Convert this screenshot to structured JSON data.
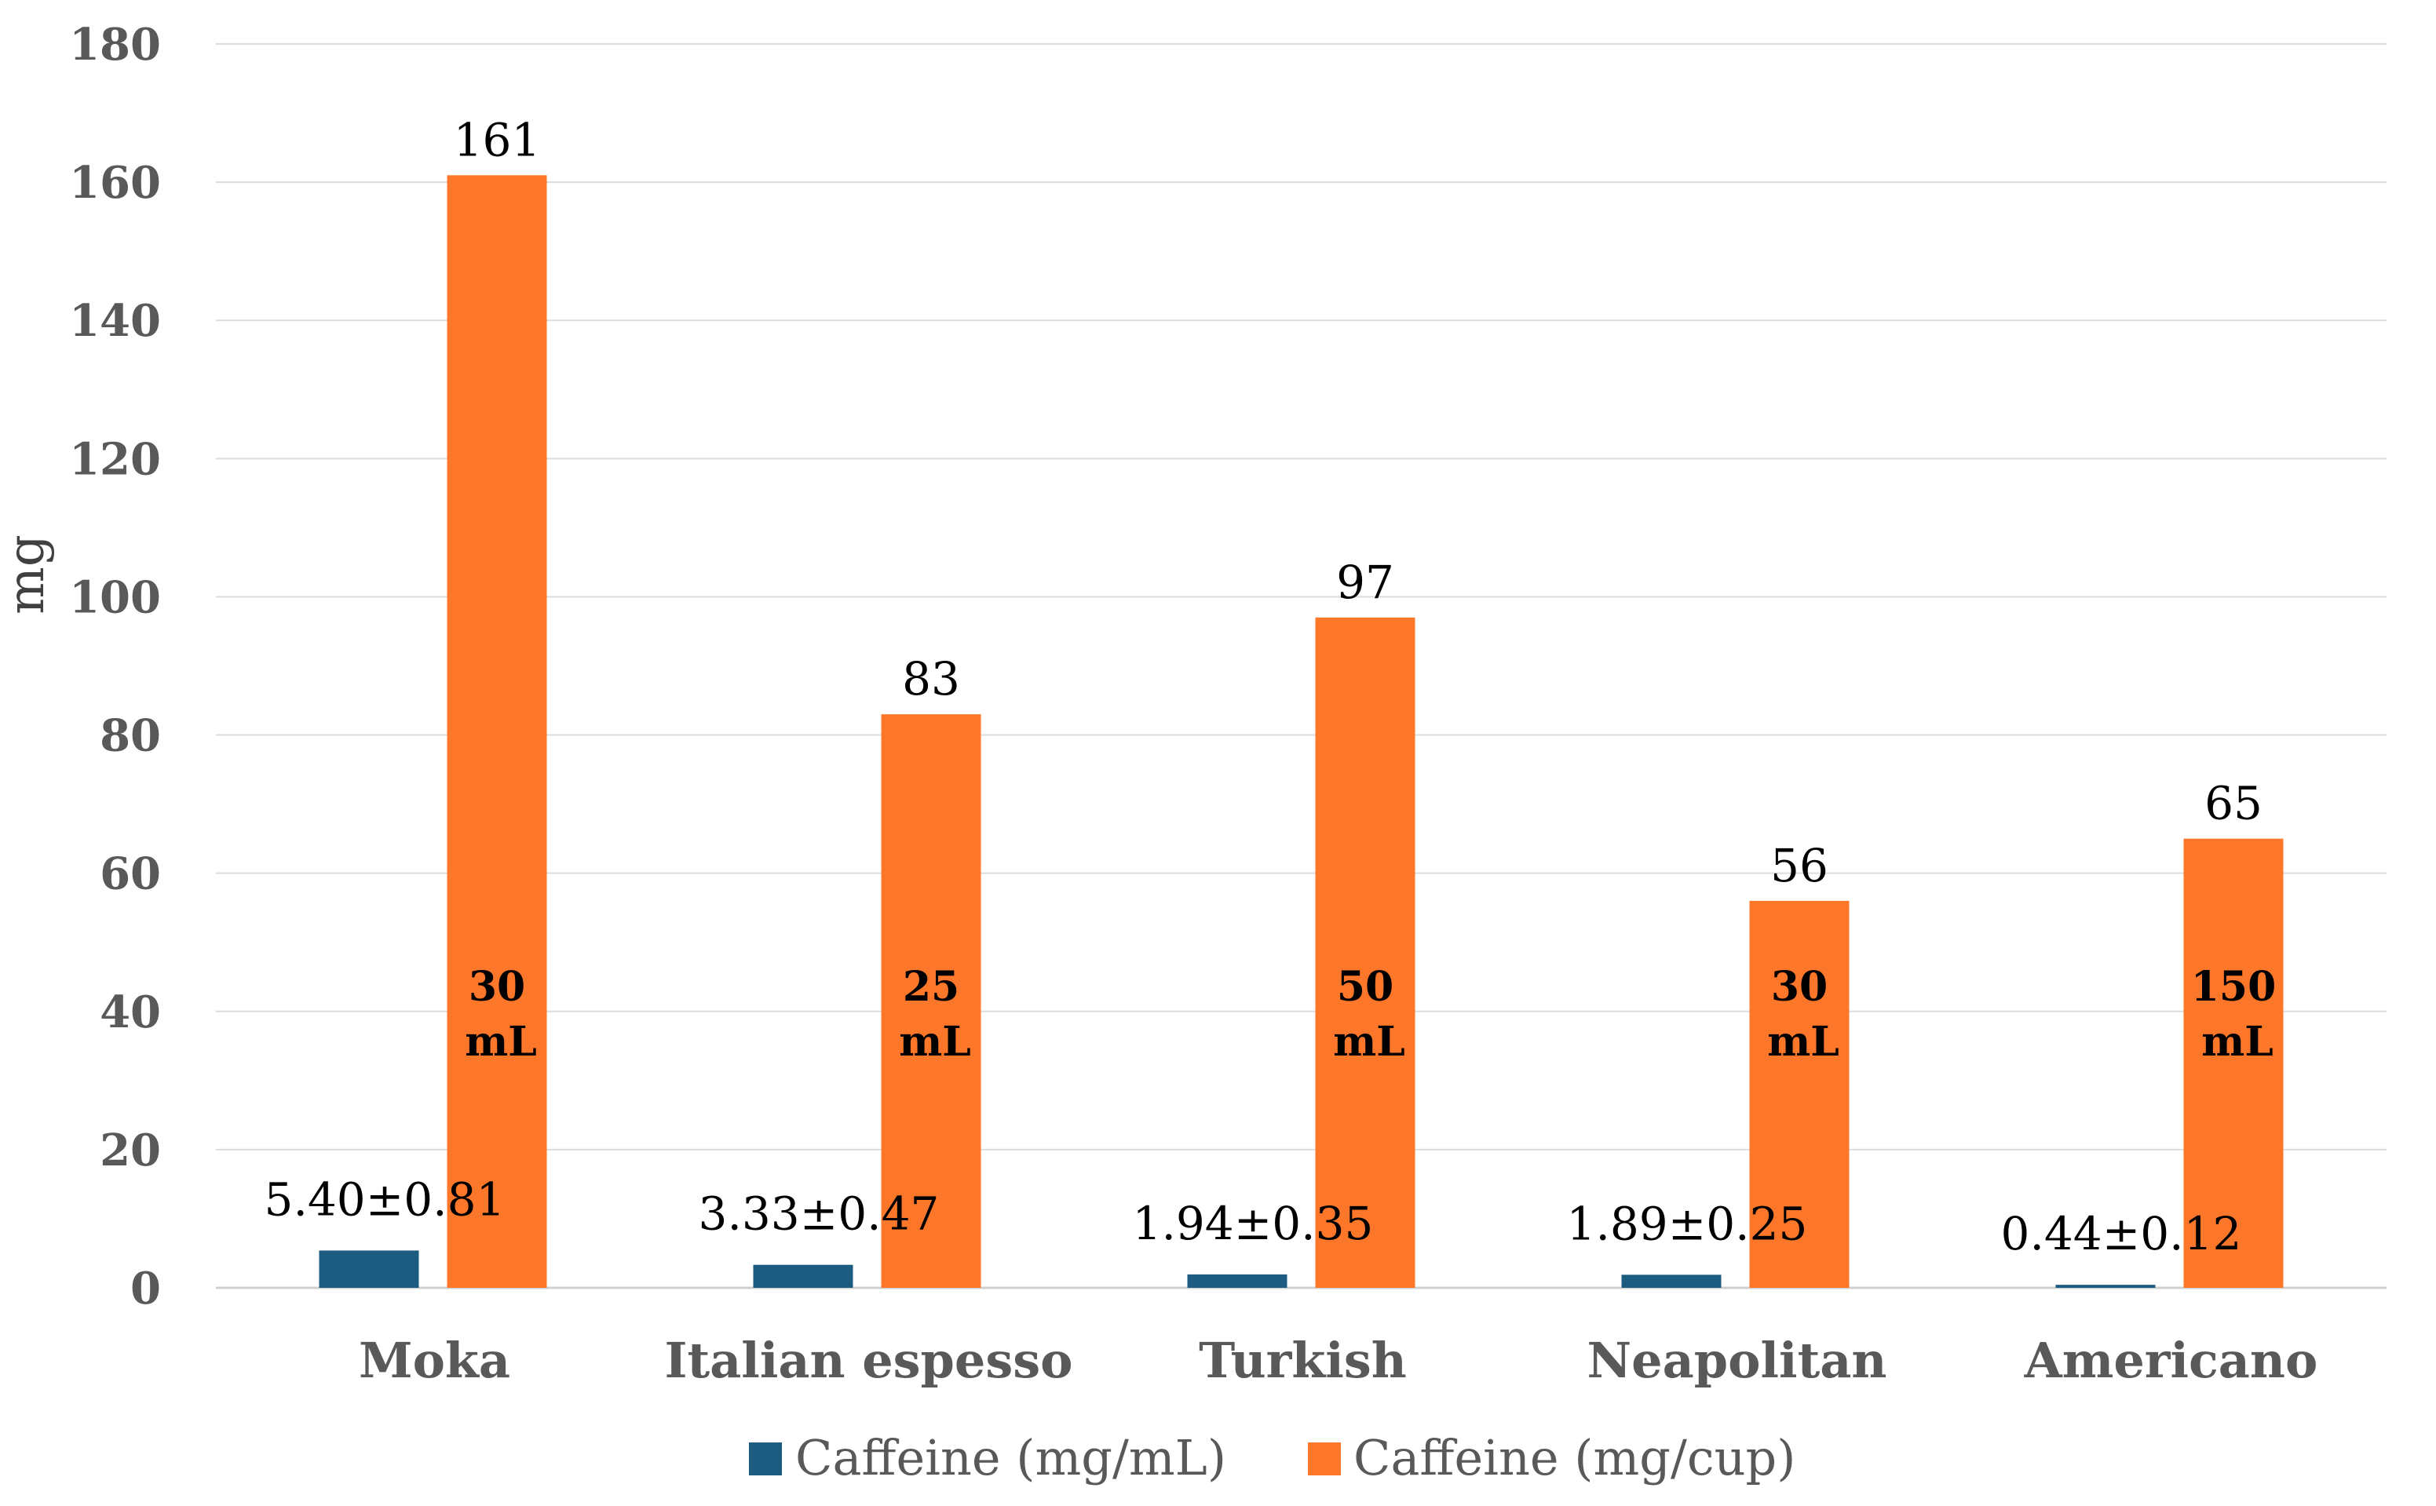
{
  "chart_data": {
    "type": "bar",
    "title": "",
    "xlabel": "",
    "ylabel": "mg",
    "ylim": [
      0,
      180
    ],
    "yticks": [
      0,
      20,
      40,
      60,
      80,
      100,
      120,
      140,
      160,
      180
    ],
    "grid": true,
    "legend_position": "bottom",
    "categories": [
      "Moka",
      "Italian espesso",
      "Turkish",
      "Neapolitan",
      "Americano"
    ],
    "series": [
      {
        "name": "Caffeine (mg/mL)",
        "color": "#1b5c80",
        "values": [
          5.4,
          3.33,
          1.94,
          1.89,
          0.44
        ],
        "labels": [
          "5.40±0.81",
          "3.33±0.47",
          "1.94±0.35",
          "1.89±0.25",
          "0.44±0.12"
        ]
      },
      {
        "name": "Caffeine (mg/cup)",
        "color": "#fd772a",
        "values": [
          161,
          83,
          97,
          56,
          65
        ],
        "labels": [
          "161",
          "83",
          "97",
          "56",
          "65"
        ],
        "inner_labels": [
          [
            "30",
            "mL"
          ],
          [
            "25",
            "mL"
          ],
          [
            "50",
            "mL"
          ],
          [
            "30",
            "mL"
          ],
          [
            "150",
            "mL"
          ]
        ]
      }
    ]
  }
}
